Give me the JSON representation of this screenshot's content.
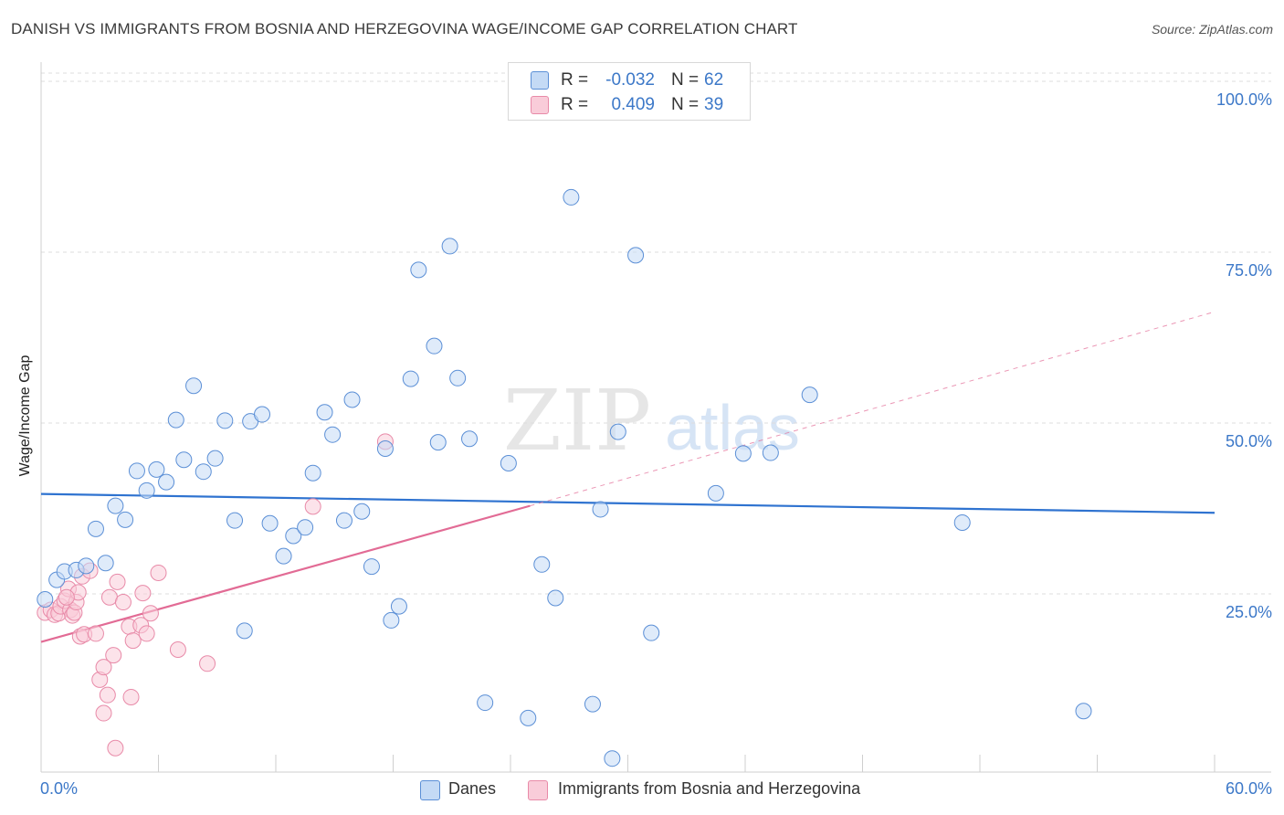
{
  "header": {
    "title": "DANISH VS IMMIGRANTS FROM BOSNIA AND HERZEGOVINA WAGE/INCOME GAP CORRELATION CHART",
    "source": "Source: ZipAtlas.com"
  },
  "watermark": {
    "zip": "ZIP",
    "atlas": "atlas"
  },
  "colors": {
    "blue_fill": "#c4daf5",
    "blue_stroke": "#5b8fd6",
    "blue_line": "#2f73d0",
    "pink_fill": "#f9ccd9",
    "pink_stroke": "#e88aa8",
    "pink_line": "#e26b95",
    "tick_text": "#3c78c8",
    "grid": "#dddddd"
  },
  "legend": {
    "rows": [
      {
        "r_label": "R =",
        "r_value": "-0.032",
        "n_label": "N =",
        "n_value": "62"
      },
      {
        "r_label": "R =",
        "r_value": "0.409",
        "n_label": "N =",
        "n_value": "39"
      }
    ],
    "bottom": {
      "series1": "Danes",
      "series2": "Immigrants from Bosnia and Herzegovina"
    }
  },
  "chart_data": {
    "type": "scatter",
    "title": "DANISH VS IMMIGRANTS FROM BOSNIA AND HERZEGOVINA WAGE/INCOME GAP CORRELATION CHART",
    "xlabel": "",
    "ylabel": "Wage/Income Gap",
    "xlim": [
      0,
      60
    ],
    "ylim": [
      0,
      100
    ],
    "x_tick_labels": [
      "0.0%",
      "60.0%"
    ],
    "y_ticks": [
      25,
      50,
      75,
      100
    ],
    "y_tick_labels": [
      "25.0%",
      "50.0%",
      "75.0%",
      "100.0%"
    ],
    "grid": true,
    "series": [
      {
        "name": "Danes",
        "r": -0.032,
        "n": 62,
        "trend": {
          "x0": 0,
          "y0": 40.1,
          "x1": 60,
          "y1": 37.4
        },
        "points": [
          [
            0.2,
            25.0
          ],
          [
            0.8,
            27.8
          ],
          [
            1.2,
            29.0
          ],
          [
            1.8,
            29.2
          ],
          [
            2.3,
            29.8
          ],
          [
            2.8,
            35.1
          ],
          [
            3.3,
            30.2
          ],
          [
            3.8,
            38.4
          ],
          [
            4.3,
            36.4
          ],
          [
            4.9,
            43.4
          ],
          [
            5.4,
            40.6
          ],
          [
            5.9,
            43.6
          ],
          [
            6.4,
            41.8
          ],
          [
            6.9,
            50.7
          ],
          [
            7.3,
            45.0
          ],
          [
            7.8,
            55.6
          ],
          [
            8.3,
            43.3
          ],
          [
            8.9,
            45.2
          ],
          [
            9.4,
            50.6
          ],
          [
            9.9,
            36.3
          ],
          [
            10.4,
            20.5
          ],
          [
            10.7,
            50.5
          ],
          [
            11.3,
            51.5
          ],
          [
            11.7,
            35.9
          ],
          [
            12.4,
            31.2
          ],
          [
            12.9,
            34.1
          ],
          [
            13.5,
            35.3
          ],
          [
            13.9,
            43.1
          ],
          [
            14.5,
            51.8
          ],
          [
            14.9,
            48.6
          ],
          [
            15.5,
            36.3
          ],
          [
            15.9,
            53.6
          ],
          [
            16.4,
            37.6
          ],
          [
            16.9,
            29.7
          ],
          [
            17.6,
            46.6
          ],
          [
            17.9,
            22.0
          ],
          [
            18.3,
            24.0
          ],
          [
            18.9,
            56.6
          ],
          [
            19.3,
            72.2
          ],
          [
            20.1,
            61.3
          ],
          [
            20.3,
            47.5
          ],
          [
            20.9,
            75.6
          ],
          [
            21.3,
            56.7
          ],
          [
            21.9,
            48.0
          ],
          [
            22.7,
            10.2
          ],
          [
            23.9,
            44.5
          ],
          [
            24.9,
            8.0
          ],
          [
            25.6,
            30.0
          ],
          [
            26.3,
            25.2
          ],
          [
            27.1,
            82.6
          ],
          [
            28.2,
            10.0
          ],
          [
            28.6,
            37.9
          ],
          [
            29.2,
            2.2
          ],
          [
            29.5,
            49.0
          ],
          [
            30.4,
            74.3
          ],
          [
            31.2,
            20.2
          ],
          [
            34.5,
            40.2
          ],
          [
            35.9,
            45.9
          ],
          [
            37.3,
            46.0
          ],
          [
            39.3,
            54.3
          ],
          [
            47.1,
            36.0
          ],
          [
            53.3,
            9.0
          ]
        ]
      },
      {
        "name": "Immigrants from Bosnia and Herzegovina",
        "r": 0.409,
        "n": 39,
        "trend": {
          "x0": 0,
          "y0": 18.9,
          "x1": 25,
          "y1": 38.4,
          "dash_x1": 60,
          "dash_y1": 66.2
        },
        "points": [
          [
            0.2,
            23.1
          ],
          [
            0.5,
            23.5
          ],
          [
            0.7,
            22.8
          ],
          [
            0.9,
            23.0
          ],
          [
            1.0,
            24.0
          ],
          [
            1.2,
            24.8
          ],
          [
            1.4,
            26.5
          ],
          [
            1.5,
            23.5
          ],
          [
            1.6,
            22.7
          ],
          [
            1.7,
            23.1
          ],
          [
            1.8,
            24.6
          ],
          [
            1.9,
            26.0
          ],
          [
            2.0,
            19.7
          ],
          [
            2.1,
            28.3
          ],
          [
            2.2,
            20.0
          ],
          [
            2.5,
            29.1
          ],
          [
            2.8,
            20.1
          ],
          [
            3.0,
            13.5
          ],
          [
            3.2,
            15.3
          ],
          [
            3.2,
            8.7
          ],
          [
            3.4,
            11.3
          ],
          [
            3.5,
            25.3
          ],
          [
            3.7,
            17.0
          ],
          [
            3.8,
            3.7
          ],
          [
            3.9,
            27.5
          ],
          [
            4.2,
            24.6
          ],
          [
            4.5,
            21.1
          ],
          [
            4.6,
            11.0
          ],
          [
            4.7,
            19.1
          ],
          [
            5.1,
            21.3
          ],
          [
            5.2,
            25.9
          ],
          [
            5.4,
            20.1
          ],
          [
            5.6,
            23.0
          ],
          [
            6.0,
            28.8
          ],
          [
            7.0,
            17.8
          ],
          [
            8.5,
            15.8
          ],
          [
            13.9,
            38.3
          ],
          [
            17.6,
            47.6
          ],
          [
            1.3,
            25.3
          ]
        ]
      }
    ]
  }
}
